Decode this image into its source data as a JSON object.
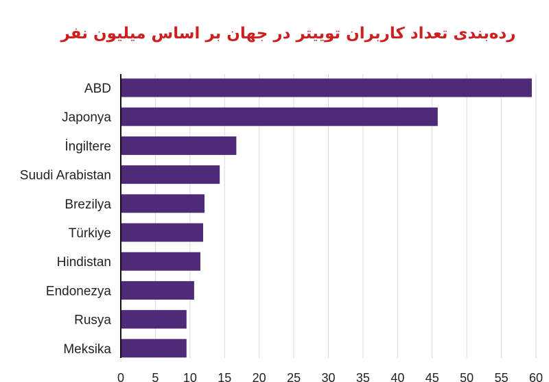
{
  "chart_data": {
    "type": "bar",
    "orientation": "horizontal",
    "title": "رده‌بندی تعداد کاربران توییتر در جهان بر اساس میلیون نفر",
    "categories": [
      "ABD",
      "Japonya",
      "İngiltere",
      "Suudi Arabistan",
      "Brezilya",
      "Türkiye",
      "Hindistan",
      "Endonezya",
      "Rusya",
      "Meksika"
    ],
    "values": [
      59.4,
      45.8,
      16.7,
      14.3,
      12.1,
      11.9,
      11.5,
      10.6,
      9.5,
      9.5
    ],
    "xlim": [
      0,
      60
    ],
    "xticks": [
      0,
      5,
      10,
      15,
      20,
      25,
      30,
      35,
      40,
      45,
      50,
      55,
      60
    ],
    "grid": true,
    "bar_color": "#4f2a78"
  }
}
